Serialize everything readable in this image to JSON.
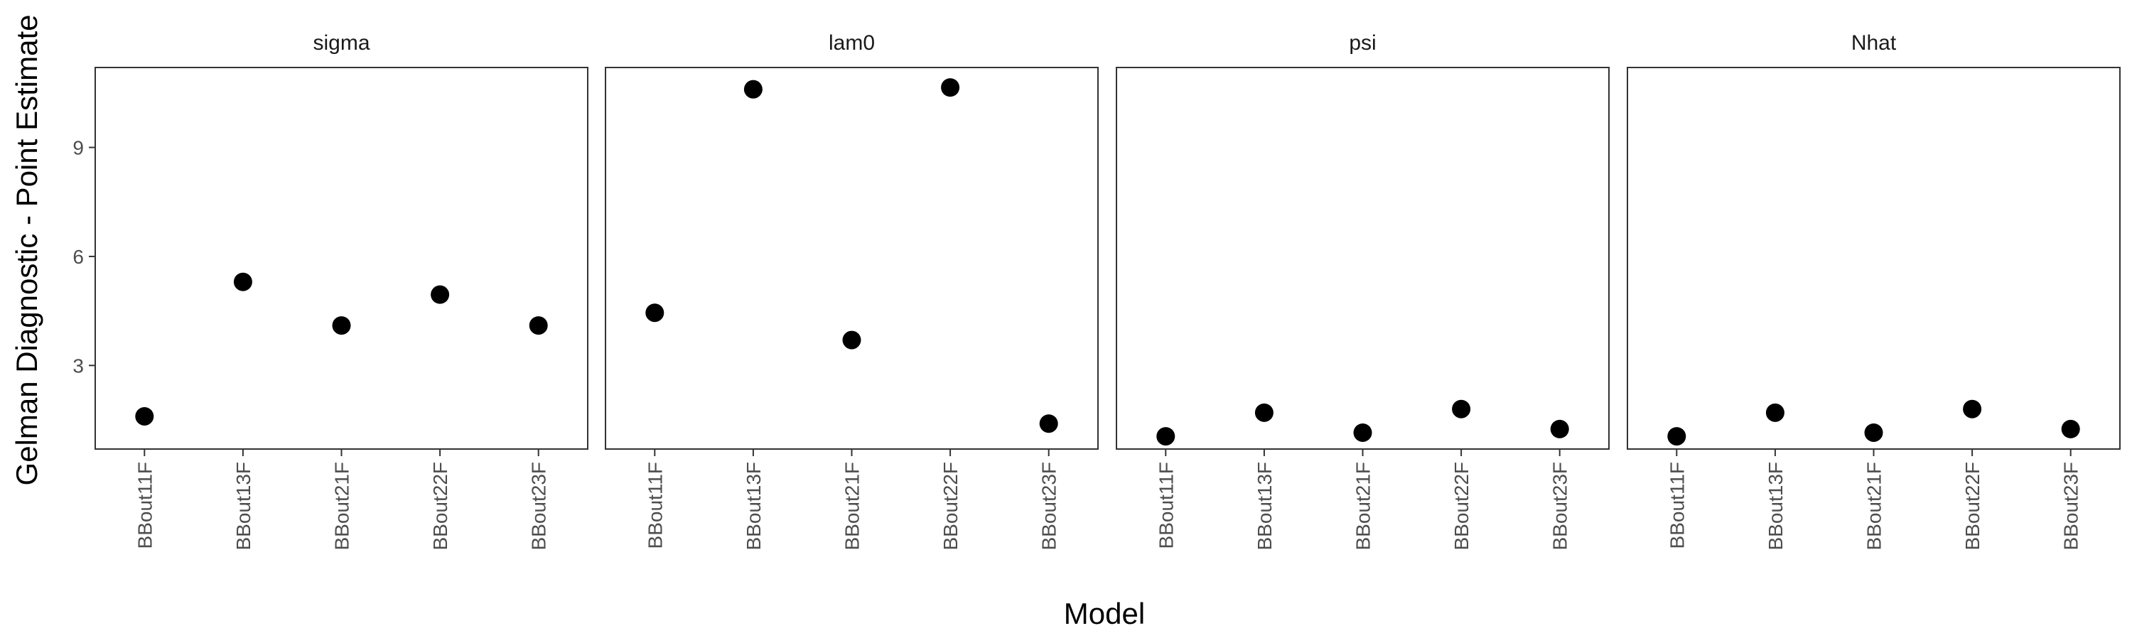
{
  "chart_data": {
    "type": "scatter",
    "facets": [
      {
        "name": "sigma",
        "values": [
          1.6,
          5.3,
          4.1,
          4.95,
          4.1
        ]
      },
      {
        "name": "lam0",
        "values": [
          4.45,
          10.6,
          3.7,
          10.65,
          1.4
        ]
      },
      {
        "name": "psi",
        "values": [
          1.05,
          1.7,
          1.15,
          1.8,
          1.25
        ]
      },
      {
        "name": "Nhat",
        "values": [
          1.05,
          1.7,
          1.15,
          1.8,
          1.25
        ]
      }
    ],
    "categories": [
      "BBout11F",
      "BBout13F",
      "BBout21F",
      "BBout22F",
      "BBout23F"
    ],
    "xlabel": "Model",
    "ylabel": "Gelman Diagnostic - Point Estimate",
    "yticks": [
      3,
      6,
      9
    ],
    "ylim": [
      0.7,
      11.2
    ],
    "grid": false,
    "point_color": "#000000"
  }
}
